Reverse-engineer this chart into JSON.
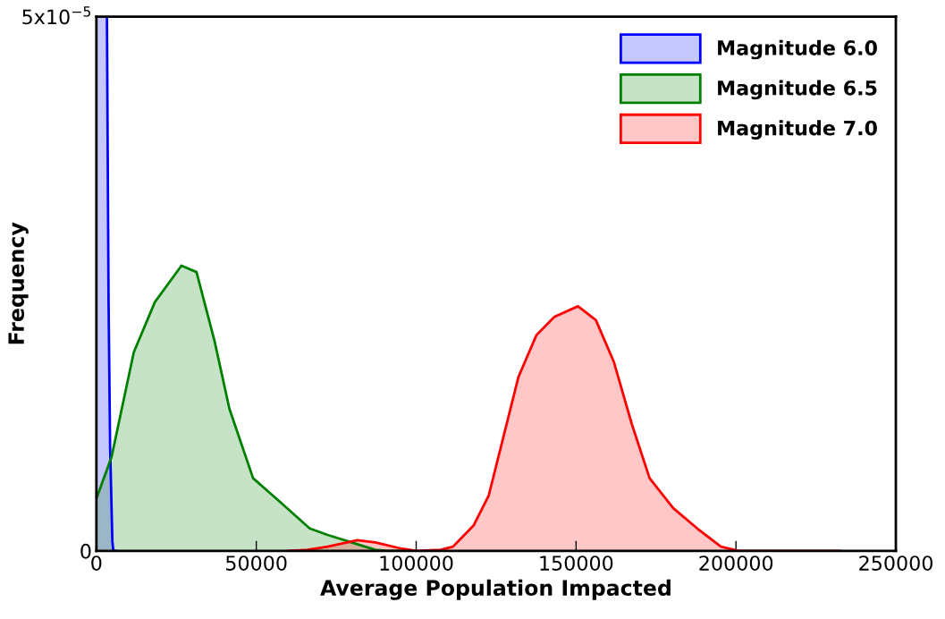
{
  "chart_data": {
    "type": "area",
    "xlabel": "Average Population Impacted",
    "ylabel": "Frequency",
    "xlim": [
      0,
      250000
    ],
    "xticks": [
      0,
      50000,
      100000,
      150000,
      200000,
      250000
    ],
    "ylim": [
      0,
      5e-05
    ],
    "yticks": [
      0,
      {
        "value": 5e-05,
        "label": "5x10$^{−5}$"
      }
    ],
    "grid": false,
    "legend": "top right",
    "series": [
      {
        "name": "Magnitude 6.0",
        "color": "#0000ff",
        "x": [
          0,
          3300,
          3800,
          4300,
          5000,
          5300,
          6000
        ],
        "values": [
          5e-05,
          5e-05,
          2.36e-05,
          9.6e-06,
          9e-07,
          0,
          0
        ]
      },
      {
        "name": "Magnitude 6.5",
        "color": "#008000",
        "x": [
          0,
          4750,
          11700,
          18300,
          26600,
          31300,
          36900,
          41600,
          49000,
          57400,
          66700,
          72300,
          79800,
          87200,
          90900,
          100000
        ],
        "values": [
          4.9e-06,
          8.8e-06,
          1.86e-05,
          2.33e-05,
          2.67e-05,
          2.61e-05,
          1.97e-05,
          1.33e-05,
          6.8e-06,
          4.6e-06,
          2.1e-06,
          1.5e-06,
          8e-07,
          1e-07,
          0,
          0
        ]
      },
      {
        "name": "Magnitude 7.0",
        "color": "#ff0000",
        "x": [
          60000,
          66000,
          72300,
          81600,
          87200,
          95600,
          100300,
          107700,
          111500,
          118000,
          122700,
          127300,
          132000,
          137600,
          143200,
          150600,
          156200,
          161800,
          167400,
          173000,
          180400,
          187900,
          195300,
          200900,
          232600
        ],
        "values": [
          0,
          1e-07,
          4e-07,
          1e-06,
          8e-07,
          2e-07,
          0,
          1e-07,
          4e-07,
          2.4e-06,
          5.2e-06,
          1.07e-05,
          1.63e-05,
          2.02e-05,
          2.19e-05,
          2.29e-05,
          2.16e-05,
          1.77e-05,
          1.19e-05,
          6.8e-06,
          4e-06,
          2.1e-06,
          4e-07,
          0,
          0
        ]
      }
    ]
  }
}
